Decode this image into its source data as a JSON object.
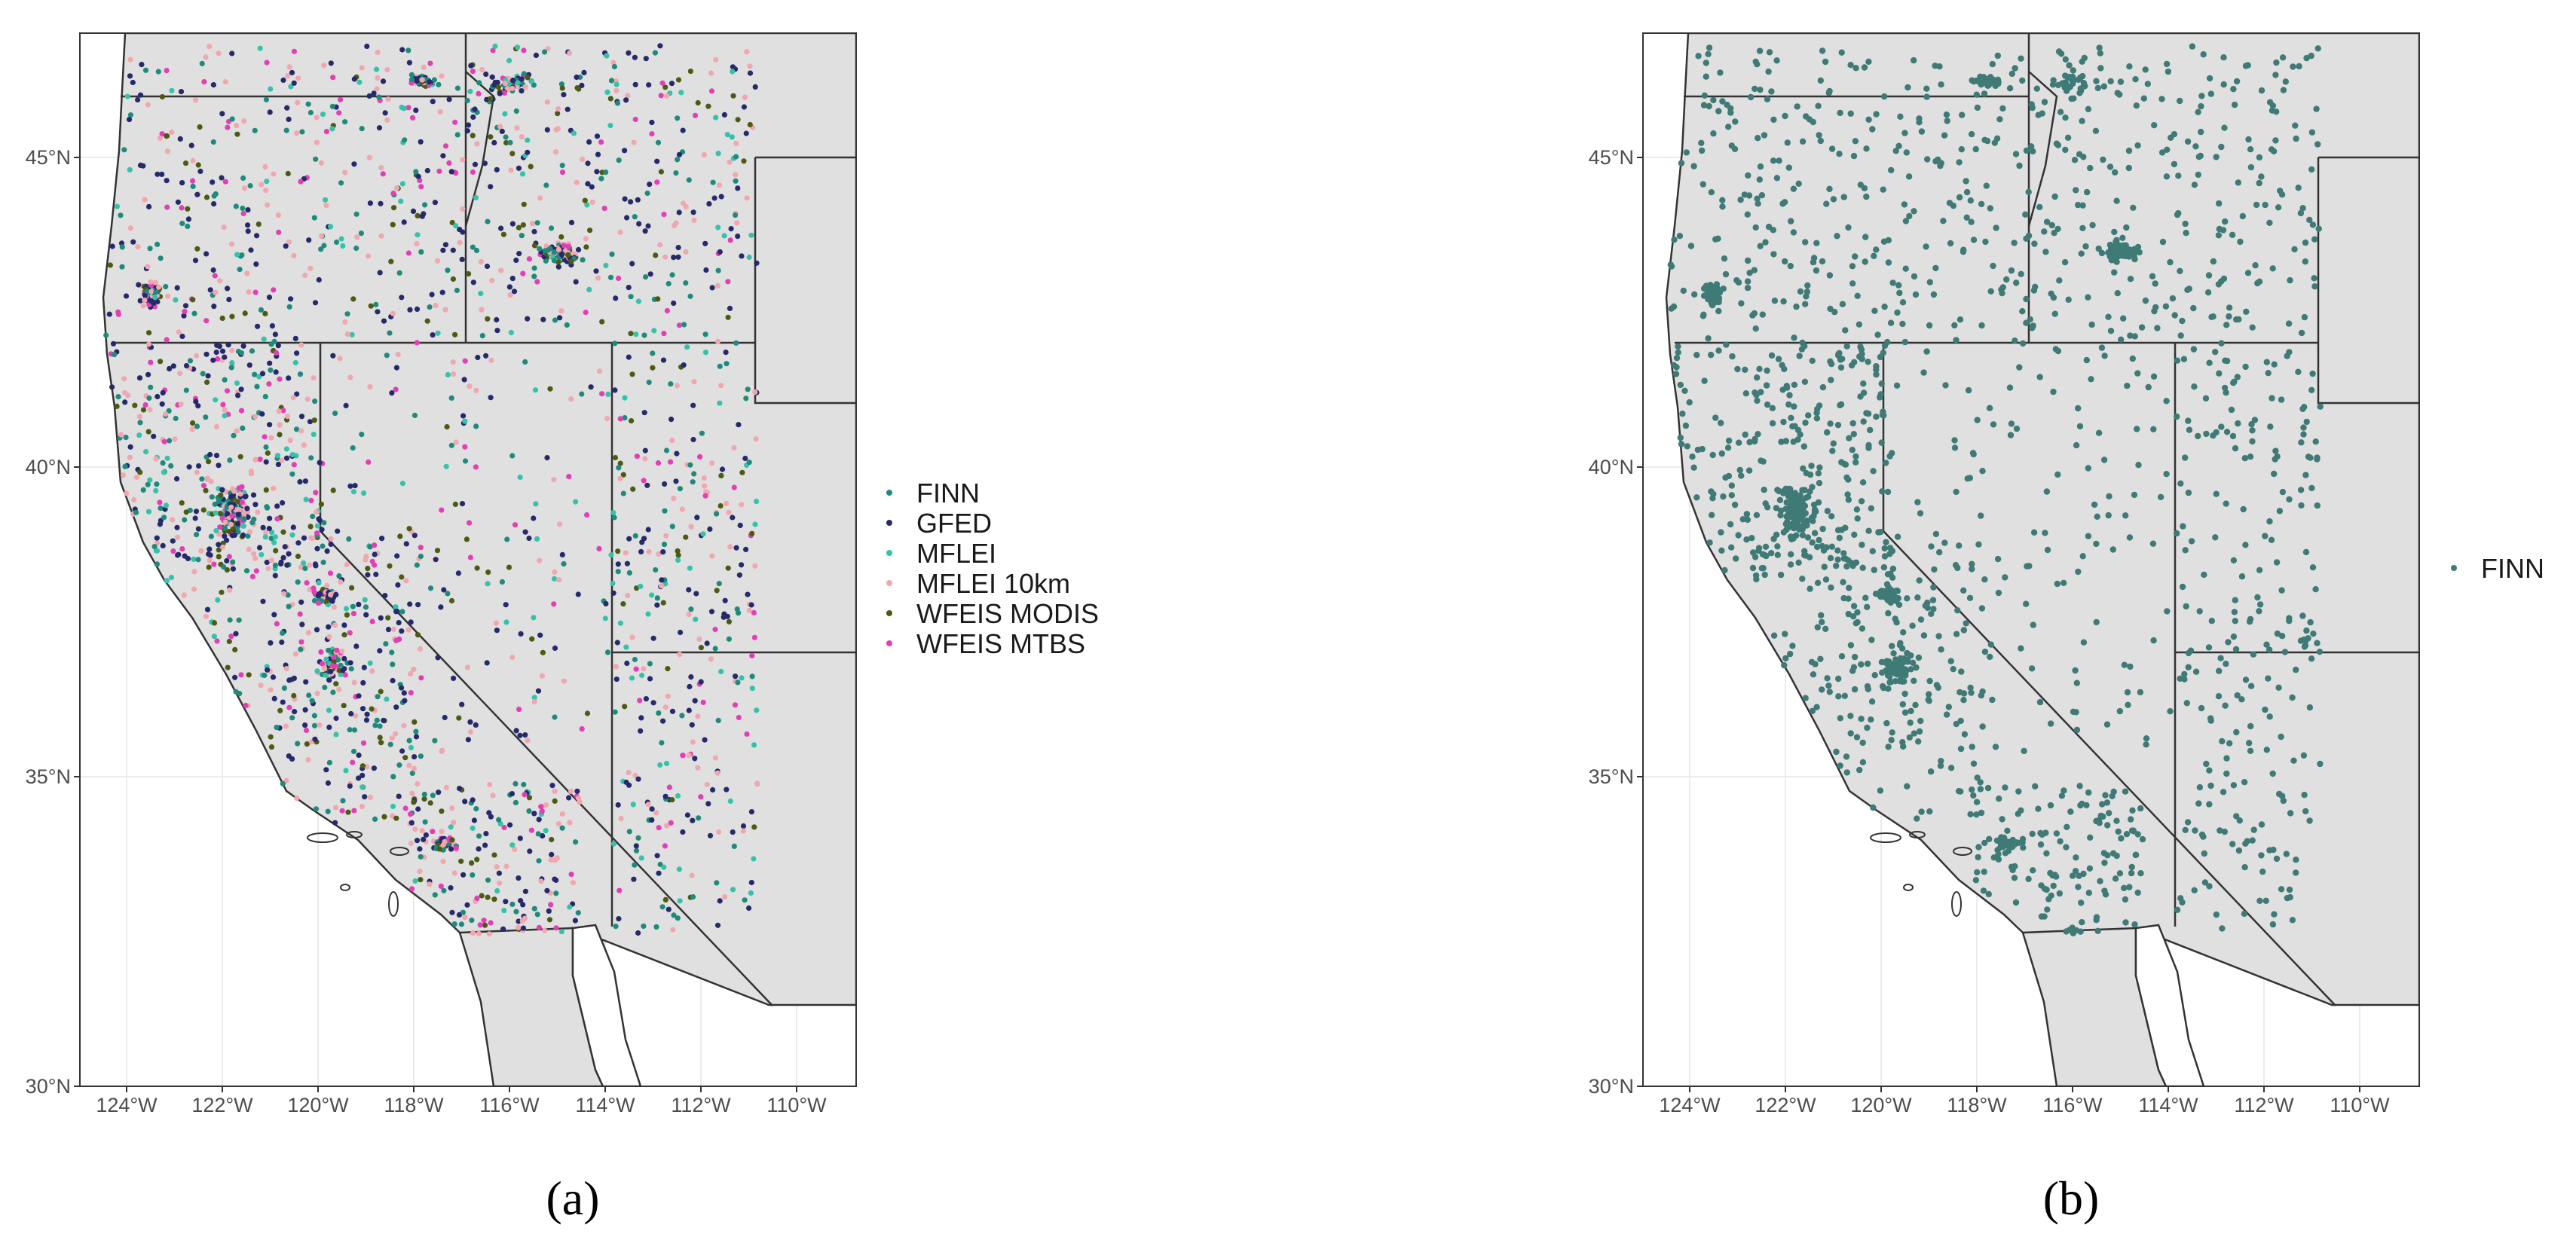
{
  "panels": [
    {
      "id": "a",
      "caption": "(a)",
      "legend": [
        {
          "label": "FINN",
          "color": "#1f8a7c"
        },
        {
          "label": "GFED",
          "color": "#262a6b"
        },
        {
          "label": "MFLEI",
          "color": "#36c2aa"
        },
        {
          "label": "MFLEI 10km",
          "color": "#f0a7b0"
        },
        {
          "label": "WFEIS MODIS",
          "color": "#4c5a12"
        },
        {
          "label": "WFEIS MTBS",
          "color": "#e23fb4"
        }
      ]
    },
    {
      "id": "b",
      "caption": "(b)",
      "legend": [
        {
          "label": "FINN",
          "color": "#3f7a76"
        }
      ]
    }
  ],
  "axes": {
    "x_ticks": [
      "124°W",
      "122°W",
      "120°W",
      "118°W",
      "116°W",
      "114°W",
      "112°W",
      "110°W"
    ],
    "y_ticks": [
      "30°N",
      "35°N",
      "40°N",
      "45°N"
    ]
  },
  "colors": {
    "land": "#e0e0e0",
    "border": "#333333",
    "grid": "#ebebeb",
    "finn_b": "#3f7a76"
  }
}
